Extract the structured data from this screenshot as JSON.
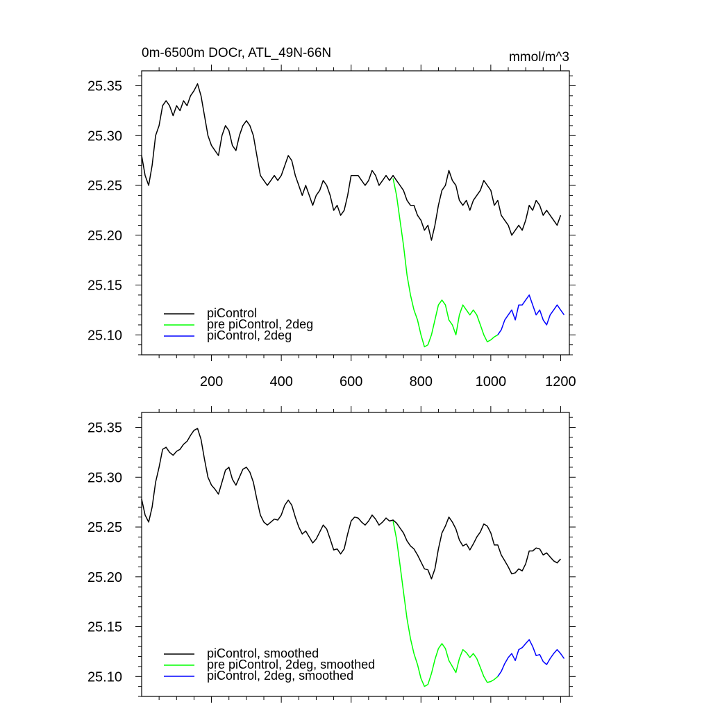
{
  "title_left": "0m-6500m DOCr, ATL_49N-66N",
  "title_right": "mmol/m^3",
  "colors": {
    "black": "#000000",
    "green": "#00ff00",
    "blue": "#0000ff"
  },
  "chart_data": [
    {
      "type": "line",
      "panel": "top",
      "xlim": [
        0,
        1225
      ],
      "ylim": [
        25.08,
        25.365
      ],
      "xticks": [
        200,
        400,
        600,
        800,
        1000,
        1200
      ],
      "xtick_labels": [
        "200",
        "400",
        "600",
        "800",
        "1000",
        "1200"
      ],
      "yticks": [
        25.1,
        25.15,
        25.2,
        25.25,
        25.3,
        25.35
      ],
      "ytick_labels": [
        "25.10",
        "25.15",
        "25.20",
        "25.25",
        "25.30",
        "25.35"
      ],
      "legend_position": "bottom-left",
      "series": [
        {
          "name": "piControl",
          "color": "#000000",
          "x": [
            0,
            10,
            20,
            30,
            40,
            50,
            60,
            70,
            80,
            90,
            100,
            110,
            120,
            130,
            140,
            150,
            160,
            170,
            180,
            190,
            200,
            210,
            220,
            230,
            240,
            250,
            260,
            270,
            280,
            290,
            300,
            310,
            320,
            330,
            340,
            350,
            360,
            370,
            380,
            390,
            400,
            410,
            420,
            430,
            440,
            450,
            460,
            470,
            480,
            490,
            500,
            510,
            520,
            530,
            540,
            550,
            560,
            570,
            580,
            590,
            600,
            610,
            620,
            630,
            640,
            650,
            660,
            670,
            680,
            690,
            700,
            710,
            720,
            730,
            740,
            750,
            760,
            770,
            780,
            790,
            800,
            810,
            820,
            830,
            840,
            850,
            860,
            870,
            880,
            890,
            900,
            910,
            920,
            930,
            940,
            950,
            960,
            970,
            980,
            990,
            1000,
            1010,
            1020,
            1030,
            1040,
            1050,
            1060,
            1070,
            1080,
            1090,
            1100,
            1110,
            1120,
            1130,
            1140,
            1150,
            1160,
            1170,
            1180,
            1190,
            1200
          ],
          "values": [
            25.28,
            25.26,
            25.25,
            25.27,
            25.3,
            25.31,
            25.33,
            25.335,
            25.33,
            25.32,
            25.33,
            25.325,
            25.335,
            25.33,
            25.34,
            25.345,
            25.352,
            25.34,
            25.32,
            25.3,
            25.29,
            25.285,
            25.28,
            25.3,
            25.31,
            25.305,
            25.29,
            25.285,
            25.3,
            25.31,
            25.315,
            25.31,
            25.3,
            25.28,
            25.26,
            25.255,
            25.25,
            25.255,
            25.26,
            25.255,
            25.26,
            25.27,
            25.28,
            25.275,
            25.26,
            25.25,
            25.24,
            25.25,
            25.24,
            25.23,
            25.24,
            25.245,
            25.255,
            25.25,
            25.24,
            25.225,
            25.23,
            25.22,
            25.225,
            25.24,
            25.26,
            25.26,
            25.26,
            25.255,
            25.25,
            25.255,
            25.265,
            25.26,
            25.25,
            25.255,
            25.26,
            25.255,
            25.26,
            25.255,
            25.25,
            25.245,
            25.235,
            25.23,
            25.23,
            25.22,
            25.215,
            25.205,
            25.21,
            25.195,
            25.21,
            25.23,
            25.245,
            25.25,
            25.265,
            25.255,
            25.25,
            25.235,
            25.23,
            25.235,
            25.225,
            25.235,
            25.24,
            25.245,
            25.255,
            25.25,
            25.245,
            25.23,
            25.235,
            25.22,
            25.215,
            25.21,
            25.2,
            25.205,
            25.21,
            25.205,
            25.215,
            25.23,
            25.225,
            25.235,
            25.23,
            25.22,
            25.225,
            25.22,
            25.215,
            25.21,
            25.22
          ]
        },
        {
          "name": "pre piControl, 2deg",
          "color": "#00ff00",
          "x": [
            720,
            730,
            740,
            750,
            760,
            770,
            780,
            790,
            800,
            810,
            820,
            830,
            840,
            850,
            860,
            870,
            880,
            890,
            900,
            910,
            920,
            930,
            940,
            950,
            960,
            970,
            980,
            990,
            1000,
            1010,
            1020
          ],
          "values": [
            25.257,
            25.24,
            25.215,
            25.19,
            25.16,
            25.14,
            25.125,
            25.115,
            25.1,
            25.088,
            25.09,
            25.1,
            25.115,
            25.13,
            25.135,
            25.13,
            25.115,
            25.11,
            25.1,
            25.12,
            25.13,
            25.125,
            25.12,
            25.125,
            25.12,
            25.11,
            25.1,
            25.093,
            25.095,
            25.098,
            25.1
          ]
        },
        {
          "name": "piControl, 2deg",
          "color": "#0000ff",
          "x": [
            1020,
            1030,
            1040,
            1050,
            1060,
            1070,
            1080,
            1090,
            1100,
            1110,
            1120,
            1130,
            1140,
            1150,
            1160,
            1170,
            1180,
            1190,
            1200,
            1210
          ],
          "values": [
            25.1,
            25.105,
            25.115,
            25.12,
            25.125,
            25.115,
            25.13,
            25.13,
            25.135,
            25.14,
            25.13,
            25.12,
            25.125,
            25.115,
            25.11,
            25.12,
            25.125,
            25.13,
            25.125,
            25.12
          ]
        }
      ]
    },
    {
      "type": "line",
      "panel": "bottom",
      "xlim": [
        0,
        1225
      ],
      "ylim": [
        25.08,
        25.365
      ],
      "yticks": [
        25.1,
        25.15,
        25.2,
        25.25,
        25.3,
        25.35
      ],
      "ytick_labels": [
        "25.10",
        "25.15",
        "25.20",
        "25.25",
        "25.30",
        "25.35"
      ],
      "legend_position": "bottom-left",
      "series": [
        {
          "name": "piControl, smoothed",
          "color": "#000000",
          "x": [
            0,
            10,
            20,
            30,
            40,
            50,
            60,
            70,
            80,
            90,
            100,
            110,
            120,
            130,
            140,
            150,
            160,
            170,
            180,
            190,
            200,
            210,
            220,
            230,
            240,
            250,
            260,
            270,
            280,
            290,
            300,
            310,
            320,
            330,
            340,
            350,
            360,
            370,
            380,
            390,
            400,
            410,
            420,
            430,
            440,
            450,
            460,
            470,
            480,
            490,
            500,
            510,
            520,
            530,
            540,
            550,
            560,
            570,
            580,
            590,
            600,
            610,
            620,
            630,
            640,
            650,
            660,
            670,
            680,
            690,
            700,
            710,
            720,
            730,
            740,
            750,
            760,
            770,
            780,
            790,
            800,
            810,
            820,
            830,
            840,
            850,
            860,
            870,
            880,
            890,
            900,
            910,
            920,
            930,
            940,
            950,
            960,
            970,
            980,
            990,
            1000,
            1010,
            1020,
            1030,
            1040,
            1050,
            1060,
            1070,
            1080,
            1090,
            1100,
            1110,
            1120,
            1130,
            1140,
            1150,
            1160,
            1170,
            1180,
            1190,
            1200
          ],
          "values": [
            25.278,
            25.262,
            25.255,
            25.27,
            25.295,
            25.31,
            25.328,
            25.33,
            25.325,
            25.322,
            25.326,
            25.328,
            25.333,
            25.336,
            25.342,
            25.347,
            25.349,
            25.338,
            25.318,
            25.3,
            25.292,
            25.288,
            25.283,
            25.295,
            25.307,
            25.31,
            25.298,
            25.292,
            25.3,
            25.308,
            25.31,
            25.305,
            25.295,
            25.278,
            25.262,
            25.255,
            25.252,
            25.255,
            25.258,
            25.257,
            25.262,
            25.272,
            25.277,
            25.272,
            25.26,
            25.25,
            25.243,
            25.246,
            25.24,
            25.234,
            25.238,
            25.245,
            25.252,
            25.248,
            25.238,
            25.227,
            25.228,
            25.223,
            25.228,
            25.243,
            25.256,
            25.26,
            25.259,
            25.255,
            25.252,
            25.256,
            25.262,
            25.258,
            25.252,
            25.255,
            25.259,
            25.256,
            25.257,
            25.254,
            25.249,
            25.244,
            25.236,
            25.231,
            25.228,
            25.222,
            25.215,
            25.208,
            25.207,
            25.198,
            25.208,
            25.228,
            25.244,
            25.251,
            25.26,
            25.255,
            25.248,
            25.237,
            25.231,
            25.233,
            25.227,
            25.233,
            25.24,
            25.245,
            25.253,
            25.251,
            25.244,
            25.232,
            25.232,
            25.222,
            25.216,
            25.21,
            25.203,
            25.204,
            25.208,
            25.206,
            25.213,
            25.226,
            25.226,
            25.229,
            25.228,
            25.222,
            25.224,
            25.22,
            25.216,
            25.214,
            25.218
          ]
        },
        {
          "name": "pre piControl, 2deg, smoothed",
          "color": "#00ff00",
          "x": [
            720,
            730,
            740,
            750,
            760,
            770,
            780,
            790,
            800,
            810,
            820,
            830,
            840,
            850,
            860,
            870,
            880,
            890,
            900,
            910,
            920,
            930,
            940,
            950,
            960,
            970,
            980,
            990,
            1000,
            1010,
            1020
          ],
          "values": [
            25.256,
            25.238,
            25.212,
            25.185,
            25.158,
            25.138,
            25.123,
            25.112,
            25.098,
            25.09,
            25.092,
            25.103,
            25.117,
            25.128,
            25.133,
            25.128,
            25.116,
            25.11,
            25.104,
            25.118,
            25.127,
            25.124,
            25.119,
            25.123,
            25.118,
            25.109,
            25.1,
            25.094,
            25.095,
            25.097,
            25.1
          ]
        },
        {
          "name": "piControl, 2deg, smoothed",
          "color": "#0000ff",
          "x": [
            1020,
            1030,
            1040,
            1050,
            1060,
            1070,
            1080,
            1090,
            1100,
            1110,
            1120,
            1130,
            1140,
            1150,
            1160,
            1170,
            1180,
            1190,
            1200,
            1210
          ],
          "values": [
            25.1,
            25.105,
            25.113,
            25.119,
            25.123,
            25.116,
            25.127,
            25.129,
            25.133,
            25.137,
            25.13,
            25.121,
            25.122,
            25.115,
            25.112,
            25.118,
            25.123,
            25.127,
            25.123,
            25.118
          ]
        }
      ]
    }
  ]
}
